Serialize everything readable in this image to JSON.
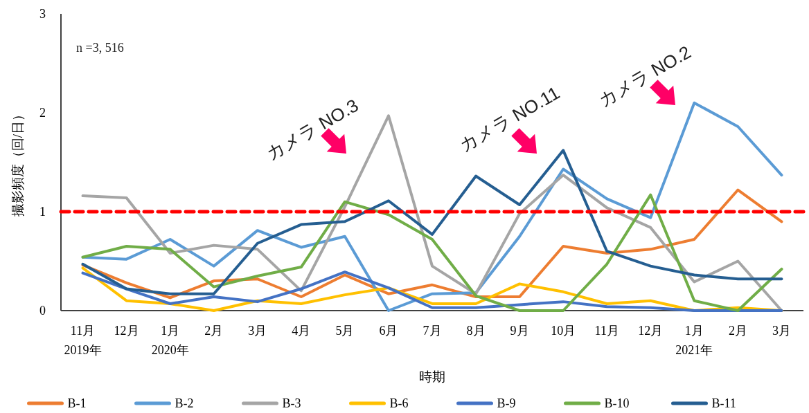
{
  "chart_data": {
    "type": "line",
    "xlabel": "時期",
    "ylabel": "撮影頻度（回/日）",
    "categories": [
      "11月\n2019年",
      "12月",
      "1月\n2020年",
      "2月",
      "3月",
      "4月",
      "5月",
      "6月",
      "7月",
      "8月",
      "9月",
      "10月",
      "11月",
      "12月",
      "1月\n2021年",
      "2月",
      "3月"
    ],
    "series": [
      {
        "name": "B-1",
        "color": "#ed7d31",
        "values": [
          0.46,
          0.28,
          0.13,
          0.3,
          0.32,
          0.14,
          0.36,
          0.17,
          0.26,
          0.14,
          0.14,
          0.65,
          0.58,
          0.62,
          0.72,
          1.22,
          0.9
        ]
      },
      {
        "name": "B-2",
        "color": "#5b9bd5",
        "values": [
          0.54,
          0.52,
          0.72,
          0.45,
          0.81,
          0.64,
          0.75,
          0.0,
          0.17,
          0.18,
          0.75,
          1.43,
          1.13,
          0.94,
          2.1,
          1.86,
          1.37
        ]
      },
      {
        "name": "B-3",
        "color": "#a5a5a5",
        "values": [
          1.16,
          1.14,
          0.58,
          0.66,
          0.62,
          0.2,
          1.05,
          1.97,
          0.45,
          0.17,
          0.98,
          1.37,
          1.04,
          0.84,
          0.29,
          0.5,
          0.0
        ]
      },
      {
        "name": "B-6",
        "color": "#ffc000",
        "values": [
          0.43,
          0.1,
          0.07,
          0.0,
          0.1,
          0.07,
          0.16,
          0.23,
          0.07,
          0.07,
          0.27,
          0.19,
          0.07,
          0.1,
          0.0,
          0.03,
          0.0
        ]
      },
      {
        "name": "B-9",
        "color": "#4472c4",
        "values": [
          0.38,
          0.22,
          0.07,
          0.14,
          0.09,
          0.22,
          0.39,
          0.23,
          0.03,
          0.03,
          0.06,
          0.09,
          0.04,
          0.03,
          0.0,
          0.0,
          0.0
        ]
      },
      {
        "name": "B-10",
        "color": "#70ad47",
        "values": [
          0.54,
          0.65,
          0.62,
          0.24,
          0.35,
          0.44,
          1.1,
          0.97,
          0.72,
          0.15,
          0.0,
          0.0,
          0.47,
          1.17,
          0.1,
          0.0,
          0.42
        ]
      },
      {
        "name": "B-11",
        "color": "#255e91",
        "values": [
          0.47,
          0.22,
          0.17,
          0.17,
          0.68,
          0.87,
          0.9,
          1.11,
          0.77,
          1.36,
          1.07,
          1.62,
          0.6,
          0.45,
          0.36,
          0.32,
          0.32
        ]
      }
    ],
    "ylim": [
      0,
      3
    ],
    "yticks": [
      0,
      1,
      2,
      3
    ],
    "grid": false,
    "legend": "bottom",
    "marker": "none",
    "line_style": "solid",
    "ref_lines": [
      {
        "axis": "y",
        "value": 1,
        "color": "#ff0000",
        "line_style": "dashed"
      }
    ],
    "annotations": [
      "n =3, 516",
      "カメラ NO.3",
      "カメラ NO.11",
      "カメラ NO.2"
    ]
  }
}
